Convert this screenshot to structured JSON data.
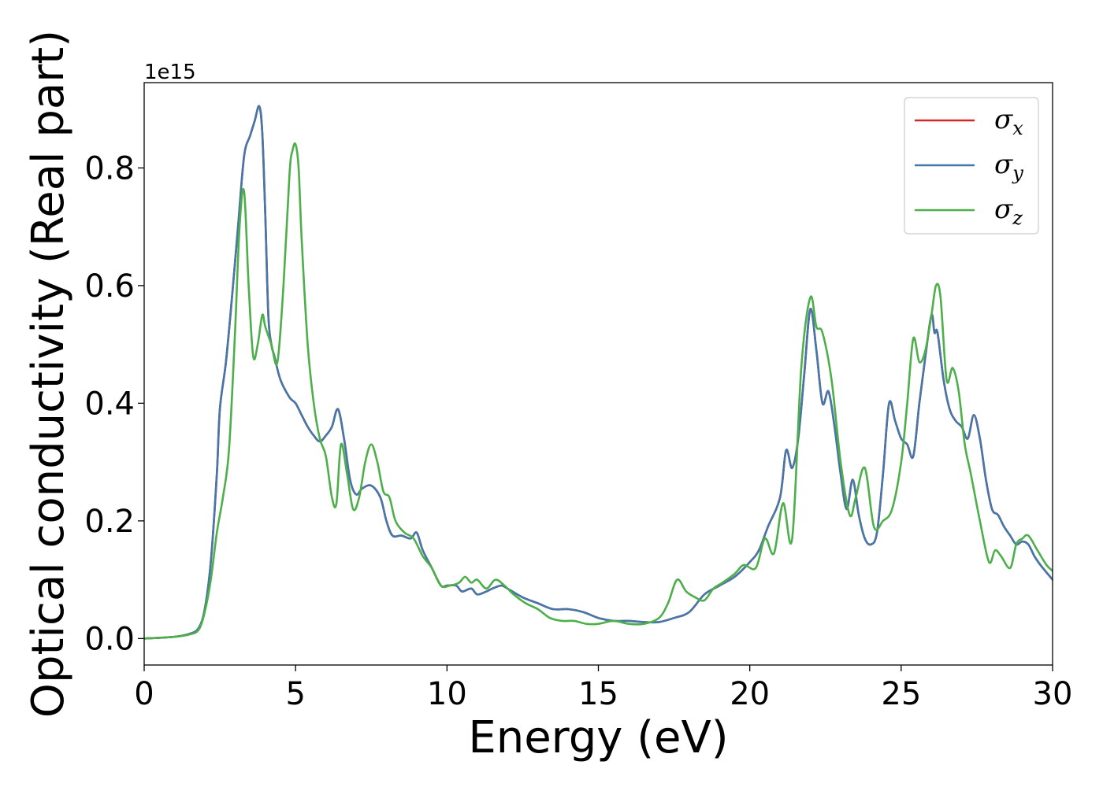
{
  "chart_data": {
    "type": "line",
    "xlabel": "Energy (eV)",
    "ylabel": "Optical conductivity (Real part)",
    "y_offset_text": "1e15",
    "y_scale": 1000000000000000.0,
    "xlim": [
      0,
      30
    ],
    "ylim": [
      -0.045,
      0.945
    ],
    "xticks": [
      0,
      5,
      10,
      15,
      20,
      25,
      30
    ],
    "xtick_labels": [
      "0",
      "5",
      "10",
      "15",
      "20",
      "25",
      "30"
    ],
    "yticks": [
      0.0,
      0.2,
      0.4,
      0.6,
      0.8
    ],
    "ytick_labels": [
      "0.0",
      "0.2",
      "0.4",
      "0.6",
      "0.8"
    ],
    "grid": false,
    "legend_position": "top-right",
    "series": [
      {
        "name": "σ_x",
        "symbol": "σ",
        "subscript": "x",
        "color": "#d62728",
        "x": [
          0,
          1,
          1.5,
          1.8,
          2.0,
          2.2,
          2.4,
          2.5,
          2.7,
          2.9,
          3.1,
          3.3,
          3.5,
          3.65,
          3.8,
          3.9,
          4.0,
          4.1,
          4.2,
          4.3,
          4.5,
          4.8,
          5.0,
          5.2,
          5.4,
          5.6,
          5.8,
          6.0,
          6.2,
          6.4,
          6.6,
          6.8,
          7.0,
          7.2,
          7.5,
          7.8,
          8.0,
          8.2,
          8.5,
          8.8,
          9.0,
          9.2,
          9.5,
          9.8,
          10.0,
          10.3,
          10.5,
          10.8,
          11.0,
          11.3,
          11.5,
          11.8,
          12.0,
          12.5,
          13.0,
          13.5,
          14.0,
          14.5,
          15.0,
          15.5,
          16.0,
          16.5,
          17.0,
          17.5,
          18.0,
          18.5,
          19.0,
          19.5,
          20.0,
          20.3,
          20.6,
          21.0,
          21.2,
          21.4,
          21.6,
          21.8,
          22.0,
          22.2,
          22.4,
          22.6,
          22.8,
          23.0,
          23.2,
          23.4,
          23.6,
          23.8,
          24.0,
          24.2,
          24.4,
          24.6,
          24.8,
          25.0,
          25.2,
          25.4,
          25.6,
          25.8,
          26.0,
          26.1,
          26.2,
          26.4,
          26.6,
          26.8,
          27.0,
          27.2,
          27.4,
          27.6,
          27.8,
          28.0,
          28.2,
          28.4,
          28.6,
          28.8,
          29.0,
          29.2,
          29.4,
          29.6,
          30.0
        ],
        "y": [
          0.0,
          0.003,
          0.008,
          0.018,
          0.05,
          0.13,
          0.28,
          0.39,
          0.47,
          0.58,
          0.7,
          0.82,
          0.855,
          0.88,
          0.905,
          0.86,
          0.72,
          0.55,
          0.5,
          0.48,
          0.44,
          0.41,
          0.4,
          0.38,
          0.36,
          0.345,
          0.335,
          0.345,
          0.36,
          0.39,
          0.34,
          0.27,
          0.245,
          0.255,
          0.26,
          0.24,
          0.2,
          0.175,
          0.175,
          0.17,
          0.18,
          0.15,
          0.12,
          0.09,
          0.09,
          0.09,
          0.08,
          0.085,
          0.075,
          0.08,
          0.085,
          0.09,
          0.085,
          0.07,
          0.06,
          0.05,
          0.05,
          0.045,
          0.035,
          0.03,
          0.03,
          0.028,
          0.028,
          0.035,
          0.045,
          0.075,
          0.09,
          0.105,
          0.13,
          0.15,
          0.19,
          0.24,
          0.32,
          0.29,
          0.34,
          0.45,
          0.56,
          0.49,
          0.4,
          0.42,
          0.36,
          0.28,
          0.22,
          0.27,
          0.21,
          0.17,
          0.16,
          0.18,
          0.28,
          0.4,
          0.37,
          0.34,
          0.33,
          0.31,
          0.4,
          0.48,
          0.55,
          0.52,
          0.52,
          0.44,
          0.39,
          0.37,
          0.36,
          0.34,
          0.38,
          0.34,
          0.27,
          0.22,
          0.21,
          0.19,
          0.175,
          0.16,
          0.165,
          0.16,
          0.14,
          0.125,
          0.1
        ]
      },
      {
        "name": "σ_y",
        "symbol": "σ",
        "subscript": "y",
        "color": "#4477aa",
        "x": [
          0,
          1,
          1.5,
          1.8,
          2.0,
          2.2,
          2.4,
          2.5,
          2.7,
          2.9,
          3.1,
          3.3,
          3.5,
          3.65,
          3.8,
          3.9,
          4.0,
          4.1,
          4.2,
          4.3,
          4.5,
          4.8,
          5.0,
          5.2,
          5.4,
          5.6,
          5.8,
          6.0,
          6.2,
          6.4,
          6.6,
          6.8,
          7.0,
          7.2,
          7.5,
          7.8,
          8.0,
          8.2,
          8.5,
          8.8,
          9.0,
          9.2,
          9.5,
          9.8,
          10.0,
          10.3,
          10.5,
          10.8,
          11.0,
          11.3,
          11.5,
          11.8,
          12.0,
          12.5,
          13.0,
          13.5,
          14.0,
          14.5,
          15.0,
          15.5,
          16.0,
          16.5,
          17.0,
          17.5,
          18.0,
          18.5,
          19.0,
          19.5,
          20.0,
          20.3,
          20.6,
          21.0,
          21.2,
          21.4,
          21.6,
          21.8,
          22.0,
          22.2,
          22.4,
          22.6,
          22.8,
          23.0,
          23.2,
          23.4,
          23.6,
          23.8,
          24.0,
          24.2,
          24.4,
          24.6,
          24.8,
          25.0,
          25.2,
          25.4,
          25.6,
          25.8,
          26.0,
          26.1,
          26.2,
          26.4,
          26.6,
          26.8,
          27.0,
          27.2,
          27.4,
          27.6,
          27.8,
          28.0,
          28.2,
          28.4,
          28.6,
          28.8,
          29.0,
          29.2,
          29.4,
          29.6,
          30.0
        ],
        "y": [
          0.0,
          0.003,
          0.008,
          0.018,
          0.05,
          0.13,
          0.28,
          0.39,
          0.47,
          0.58,
          0.7,
          0.82,
          0.855,
          0.88,
          0.905,
          0.86,
          0.72,
          0.55,
          0.5,
          0.48,
          0.44,
          0.41,
          0.4,
          0.38,
          0.36,
          0.345,
          0.335,
          0.345,
          0.36,
          0.39,
          0.34,
          0.27,
          0.245,
          0.255,
          0.26,
          0.24,
          0.2,
          0.175,
          0.175,
          0.17,
          0.18,
          0.15,
          0.12,
          0.09,
          0.09,
          0.09,
          0.08,
          0.085,
          0.075,
          0.08,
          0.085,
          0.09,
          0.085,
          0.07,
          0.06,
          0.05,
          0.05,
          0.045,
          0.035,
          0.03,
          0.03,
          0.028,
          0.028,
          0.035,
          0.045,
          0.075,
          0.09,
          0.105,
          0.13,
          0.15,
          0.19,
          0.24,
          0.32,
          0.29,
          0.34,
          0.45,
          0.56,
          0.49,
          0.4,
          0.42,
          0.36,
          0.28,
          0.22,
          0.27,
          0.21,
          0.17,
          0.16,
          0.18,
          0.28,
          0.4,
          0.37,
          0.34,
          0.33,
          0.31,
          0.4,
          0.48,
          0.55,
          0.52,
          0.52,
          0.44,
          0.39,
          0.37,
          0.36,
          0.34,
          0.38,
          0.34,
          0.27,
          0.22,
          0.21,
          0.19,
          0.175,
          0.16,
          0.165,
          0.16,
          0.14,
          0.125,
          0.1
        ]
      },
      {
        "name": "σ_z",
        "symbol": "σ",
        "subscript": "z",
        "color": "#4daf4a",
        "x": [
          0,
          1,
          1.5,
          1.8,
          2.0,
          2.2,
          2.4,
          2.6,
          2.8,
          3.0,
          3.15,
          3.3,
          3.45,
          3.6,
          3.75,
          3.9,
          4.0,
          4.2,
          4.4,
          4.6,
          4.8,
          4.9,
          5.0,
          5.1,
          5.2,
          5.4,
          5.6,
          5.8,
          6.0,
          6.2,
          6.35,
          6.5,
          6.7,
          6.9,
          7.1,
          7.3,
          7.5,
          7.7,
          7.9,
          8.1,
          8.3,
          8.6,
          8.9,
          9.2,
          9.5,
          9.8,
          10.1,
          10.4,
          10.6,
          10.8,
          11.0,
          11.3,
          11.6,
          11.9,
          12.2,
          12.6,
          13.0,
          13.4,
          13.8,
          14.2,
          14.6,
          15.0,
          15.5,
          16.0,
          16.5,
          17.0,
          17.3,
          17.6,
          17.9,
          18.2,
          18.5,
          18.8,
          19.1,
          19.5,
          19.8,
          20.2,
          20.5,
          20.8,
          21.1,
          21.4,
          21.7,
          22.0,
          22.2,
          22.4,
          22.7,
          23.0,
          23.3,
          23.5,
          23.8,
          24.1,
          24.4,
          24.7,
          25.0,
          25.2,
          25.4,
          25.6,
          25.8,
          26.0,
          26.15,
          26.3,
          26.5,
          26.7,
          26.9,
          27.1,
          27.3,
          27.6,
          27.9,
          28.1,
          28.3,
          28.6,
          28.8,
          29.0,
          29.2,
          29.5,
          29.8,
          30.0
        ],
        "y": [
          0.0,
          0.003,
          0.007,
          0.015,
          0.045,
          0.1,
          0.18,
          0.24,
          0.32,
          0.52,
          0.7,
          0.76,
          0.6,
          0.48,
          0.5,
          0.55,
          0.53,
          0.5,
          0.47,
          0.6,
          0.79,
          0.83,
          0.84,
          0.8,
          0.68,
          0.5,
          0.4,
          0.34,
          0.31,
          0.24,
          0.23,
          0.33,
          0.28,
          0.22,
          0.24,
          0.3,
          0.33,
          0.3,
          0.25,
          0.24,
          0.2,
          0.18,
          0.17,
          0.14,
          0.12,
          0.09,
          0.09,
          0.095,
          0.105,
          0.095,
          0.1,
          0.085,
          0.1,
          0.09,
          0.075,
          0.06,
          0.05,
          0.035,
          0.03,
          0.03,
          0.025,
          0.025,
          0.03,
          0.025,
          0.025,
          0.035,
          0.06,
          0.1,
          0.08,
          0.07,
          0.065,
          0.085,
          0.095,
          0.11,
          0.125,
          0.12,
          0.17,
          0.145,
          0.23,
          0.17,
          0.46,
          0.58,
          0.53,
          0.52,
          0.44,
          0.3,
          0.21,
          0.24,
          0.29,
          0.19,
          0.2,
          0.22,
          0.3,
          0.4,
          0.51,
          0.47,
          0.49,
          0.55,
          0.6,
          0.58,
          0.44,
          0.46,
          0.42,
          0.33,
          0.28,
          0.2,
          0.13,
          0.15,
          0.14,
          0.12,
          0.16,
          0.17,
          0.175,
          0.15,
          0.125,
          0.115
        ]
      }
    ]
  }
}
